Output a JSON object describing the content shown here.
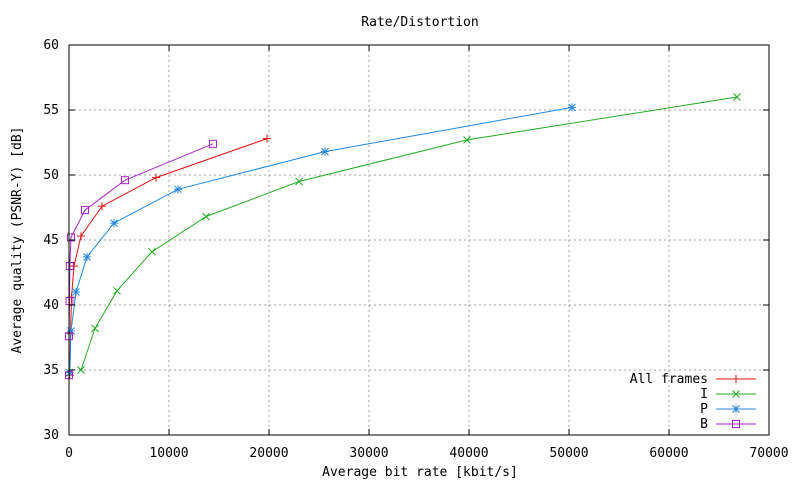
{
  "chart_data": {
    "type": "line",
    "title": "Rate/Distortion",
    "xlabel": "Average bit rate [kbit/s]",
    "ylabel": "Average quality (PSNR-Y) [dB]",
    "xlim": [
      0,
      70000
    ],
    "ylim": [
      30,
      60
    ],
    "xticks": [
      0,
      10000,
      20000,
      30000,
      40000,
      50000,
      60000,
      70000
    ],
    "yticks": [
      30,
      35,
      40,
      45,
      50,
      55,
      60
    ],
    "grid": true,
    "legend_position": "bottom-right",
    "series": [
      {
        "name": "All frames",
        "color": "#dd1111",
        "marker": "plus",
        "points": [
          [
            80,
            34.6
          ],
          [
            150,
            37.8
          ],
          [
            250,
            40.6
          ],
          [
            500,
            43.0
          ],
          [
            1200,
            45.3
          ],
          [
            3300,
            47.6
          ],
          [
            8700,
            49.8
          ],
          [
            19800,
            52.8
          ]
        ]
      },
      {
        "name": "I",
        "color": "#22aa22",
        "marker": "cross",
        "points": [
          [
            1200,
            35.0
          ],
          [
            2600,
            38.2
          ],
          [
            4800,
            41.1
          ],
          [
            8300,
            44.1
          ],
          [
            13700,
            46.8
          ],
          [
            23000,
            49.5
          ],
          [
            39800,
            52.7
          ],
          [
            66800,
            56.0
          ]
        ]
      },
      {
        "name": "P",
        "color": "#2288dd",
        "marker": "star",
        "points": [
          [
            80,
            34.8
          ],
          [
            200,
            38.0
          ],
          [
            700,
            41.0
          ],
          [
            1800,
            43.7
          ],
          [
            4500,
            46.3
          ],
          [
            10900,
            48.9
          ],
          [
            25600,
            51.8
          ],
          [
            50300,
            55.2
          ]
        ]
      },
      {
        "name": "B",
        "color": "#aa22cc",
        "marker": "square",
        "points": [
          [
            0,
            34.6
          ],
          [
            0,
            37.6
          ],
          [
            50,
            40.3
          ],
          [
            80,
            43.0
          ],
          [
            200,
            45.2
          ],
          [
            1600,
            47.3
          ],
          [
            5600,
            49.6
          ],
          [
            14400,
            52.4
          ]
        ]
      }
    ]
  }
}
